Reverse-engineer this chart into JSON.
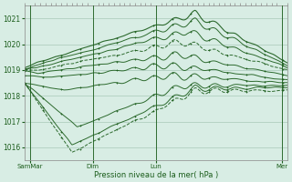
{
  "bg_color": "#d8ede4",
  "grid_color": "#a8c8b8",
  "line_color": "#1a5c1a",
  "xlabel": "Pression niveau de la mer( hPa )",
  "yticks": [
    1016,
    1017,
    1018,
    1019,
    1020,
    1021
  ],
  "ylim": [
    1015.5,
    1021.5
  ],
  "xlim": [
    0,
    100
  ],
  "day_ticks": [
    2,
    26,
    50,
    98
  ],
  "day_labels": [
    "SamMar",
    "Dim",
    "Lun",
    "Mer"
  ],
  "seed": 7
}
